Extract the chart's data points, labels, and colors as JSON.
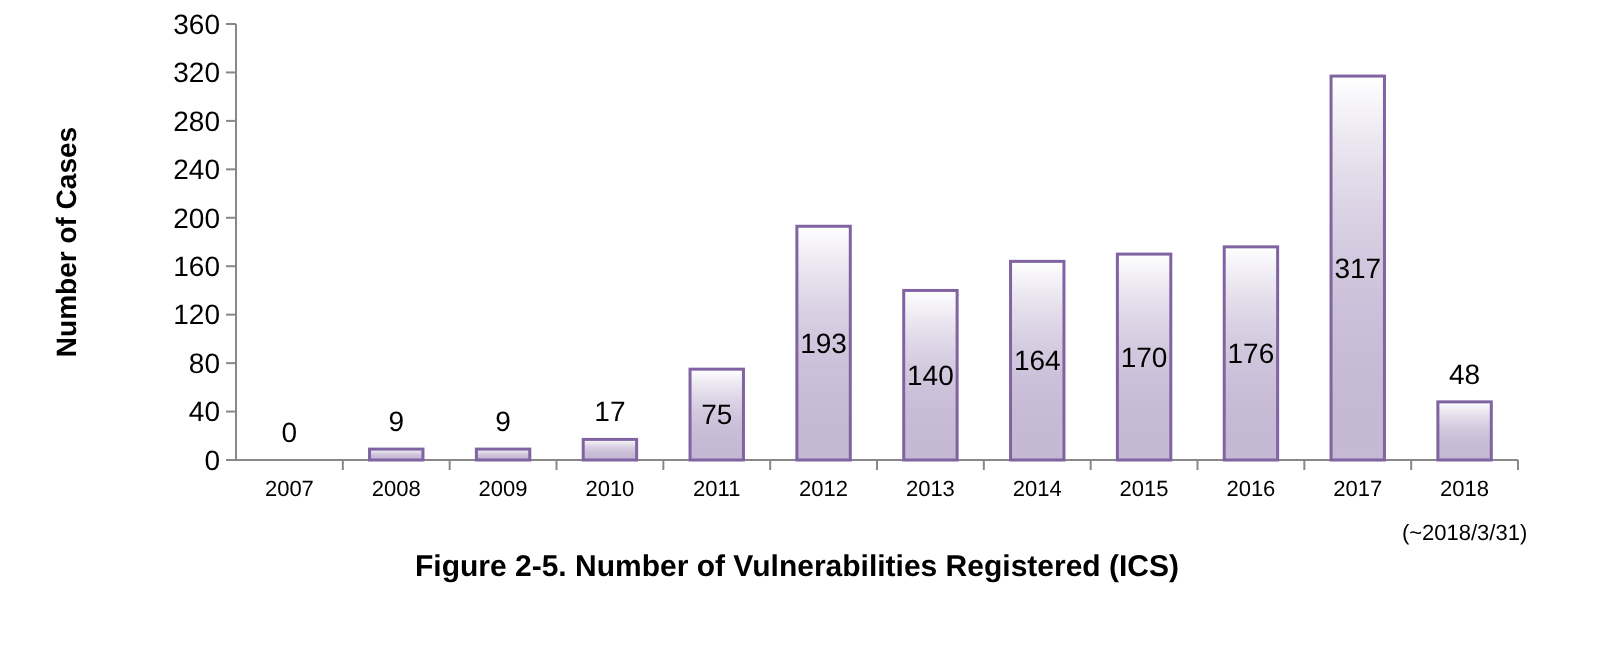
{
  "chart_data": {
    "type": "bar",
    "title": "Figure 2-5. Number of Vulnerabilities Registered (ICS)",
    "ylabel": "Number of Cases",
    "categories": [
      "2007",
      "2008",
      "2009",
      "2010",
      "2011",
      "2012",
      "2013",
      "2014",
      "2015",
      "2016",
      "2017",
      "2018"
    ],
    "values": [
      0,
      9,
      9,
      17,
      75,
      193,
      140,
      164,
      170,
      176,
      317,
      48
    ],
    "color": "#8064a2",
    "ylim": [
      0,
      360
    ],
    "yticks": [
      0,
      40,
      80,
      120,
      160,
      200,
      240,
      280,
      320,
      360
    ],
    "data_labels": true,
    "grid": false,
    "annotations": [
      "(~2018/3/31)"
    ]
  }
}
